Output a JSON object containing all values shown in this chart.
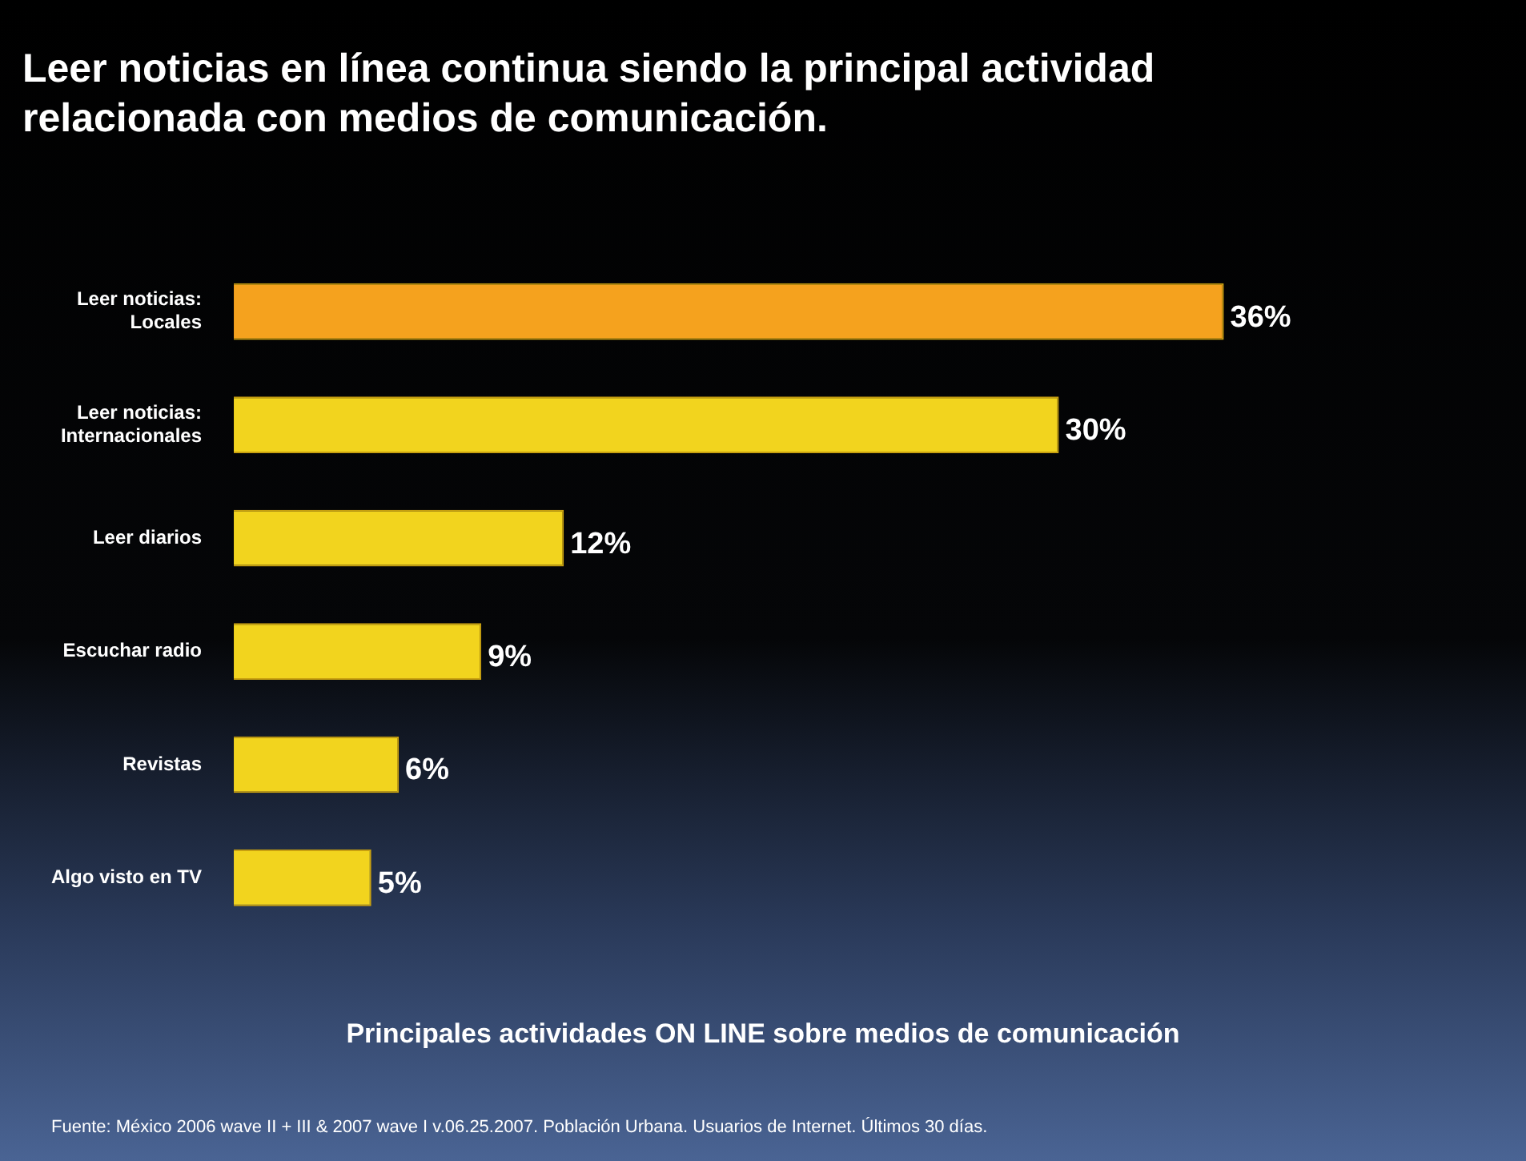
{
  "chart_data": {
    "type": "bar",
    "orientation": "horizontal",
    "title": "Leer noticias en línea continua siendo la principal actividad relacionada con medios de comunicación.",
    "categories": [
      "Leer noticias: Locales",
      "Leer noticias: Internacionales",
      "Leer diarios",
      "Escuchar radio",
      "Revistas",
      "Algo visto en TV"
    ],
    "values": [
      36,
      30,
      12,
      9,
      6,
      5
    ],
    "colors": [
      "#f5a21e",
      "#f2d41e",
      "#f2d41e",
      "#f2d41e",
      "#f2d41e",
      "#f2d41e"
    ],
    "value_labels": [
      "36%",
      "30%",
      "12%",
      "9%",
      "6%",
      "5%"
    ],
    "tick_labels": "y",
    "annotations": [
      "Principales actividades ON LINE sobre medios de comunicación",
      "Fuente: México 2006 wave II + III & 2007 wave I v.06.25.2007. Población Urbana. Usuarios de Internet.  Últimos 30 días."
    ]
  }
}
